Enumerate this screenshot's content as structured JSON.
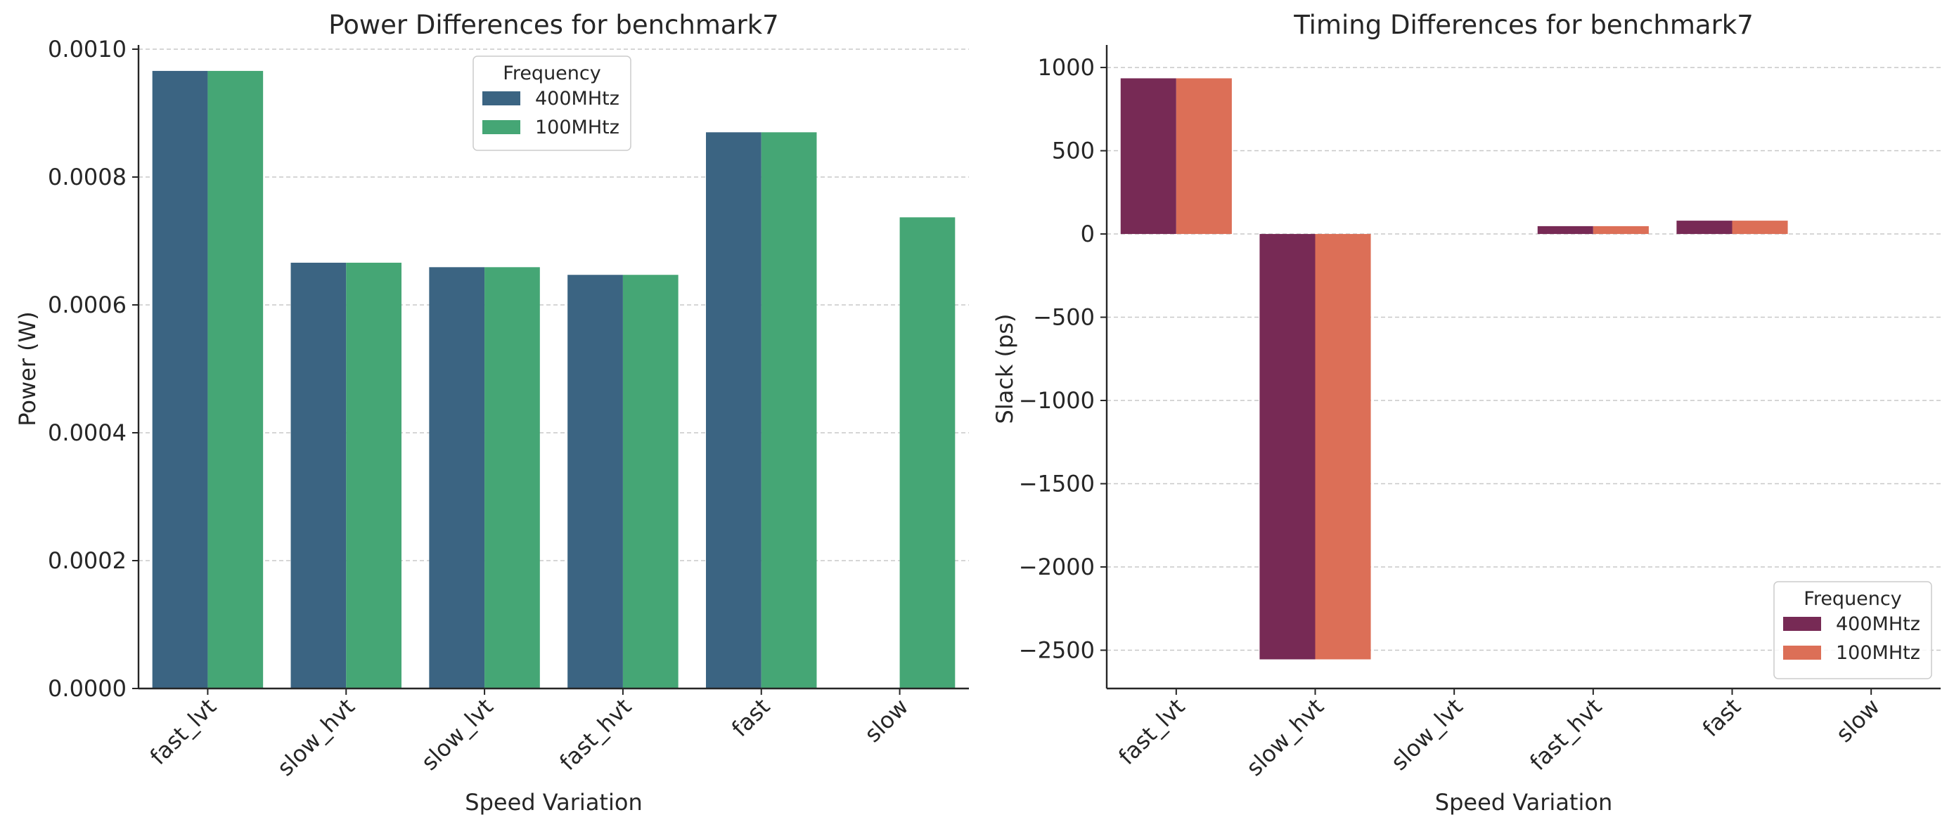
{
  "chart_data": [
    {
      "type": "bar",
      "title": "Power Differences for benchmark7",
      "xlabel": "Speed Variation",
      "ylabel": "Power (W)",
      "categories": [
        "fast_lvt",
        "slow_hvt",
        "slow_lvt",
        "fast_hvt",
        "fast",
        "slow"
      ],
      "series": [
        {
          "name": "400MHtz",
          "color": "#3b6482",
          "values": [
            0.000966,
            0.000666,
            0.000659,
            0.000647,
            0.00087,
            null
          ]
        },
        {
          "name": "100MHtz",
          "color": "#45a675",
          "values": [
            0.000966,
            0.000666,
            0.000659,
            0.000647,
            0.00087,
            0.000737
          ]
        }
      ],
      "ylim": [
        0,
        0.001
      ],
      "yticks": [
        0,
        0.0002,
        0.0004,
        0.0006,
        0.0008,
        0.001
      ],
      "ytick_labels": [
        "0.0000",
        "0.0002",
        "0.0004",
        "0.0006",
        "0.0008",
        "0.0010"
      ],
      "grid": true,
      "legend": {
        "title": "Frequency",
        "placement": "upper-center"
      }
    },
    {
      "type": "bar",
      "title": "Timing Differences for benchmark7",
      "xlabel": "Speed Variation",
      "ylabel": "Slack (ps)",
      "categories": [
        "fast_lvt",
        "slow_hvt",
        "slow_lvt",
        "fast_hvt",
        "fast",
        "slow"
      ],
      "series": [
        {
          "name": "400MHtz",
          "color": "#772a55",
          "values": [
            935,
            -2555,
            0,
            47,
            80,
            0
          ]
        },
        {
          "name": "100MHtz",
          "color": "#dc6f57",
          "values": [
            935,
            -2555,
            0,
            47,
            80,
            0
          ]
        }
      ],
      "ylim": [
        -2730,
        1110
      ],
      "yticks": [
        1000,
        500,
        0,
        -500,
        -1000,
        -1500,
        -2000,
        -2500
      ],
      "ytick_labels": [
        "1000",
        "500",
        "0",
        "−500",
        "−1000",
        "−1500",
        "−2000",
        "−2500"
      ],
      "grid": true,
      "legend": {
        "title": "Frequency",
        "placement": "lower-right"
      }
    }
  ]
}
